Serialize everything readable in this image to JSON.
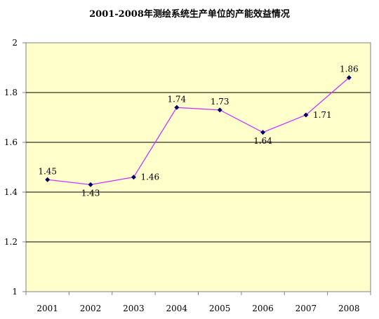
{
  "chart_data": {
    "type": "line",
    "title": "2001-2008年测绘系统生产单位的产能效益情况",
    "xlabel": "",
    "ylabel": "",
    "categories": [
      "2001",
      "2002",
      "2003",
      "2004",
      "2005",
      "2006",
      "2007",
      "2008"
    ],
    "series": [
      {
        "values": [
          1.45,
          1.43,
          1.46,
          1.74,
          1.73,
          1.64,
          1.71,
          1.86
        ],
        "value_labels": [
          "1.45",
          "1.43",
          "1.46",
          "1.74",
          "1.73",
          "1.64",
          "1.71",
          "1.86"
        ],
        "line_color": "#cc33ff",
        "marker_color": "#000066"
      }
    ],
    "ylim": [
      1,
      2
    ],
    "yticks": [
      "1",
      "1.2",
      "1.4",
      "1.6",
      "1.8",
      "2"
    ],
    "grid": true,
    "plot_background": "#ffffcc",
    "legend": false
  }
}
